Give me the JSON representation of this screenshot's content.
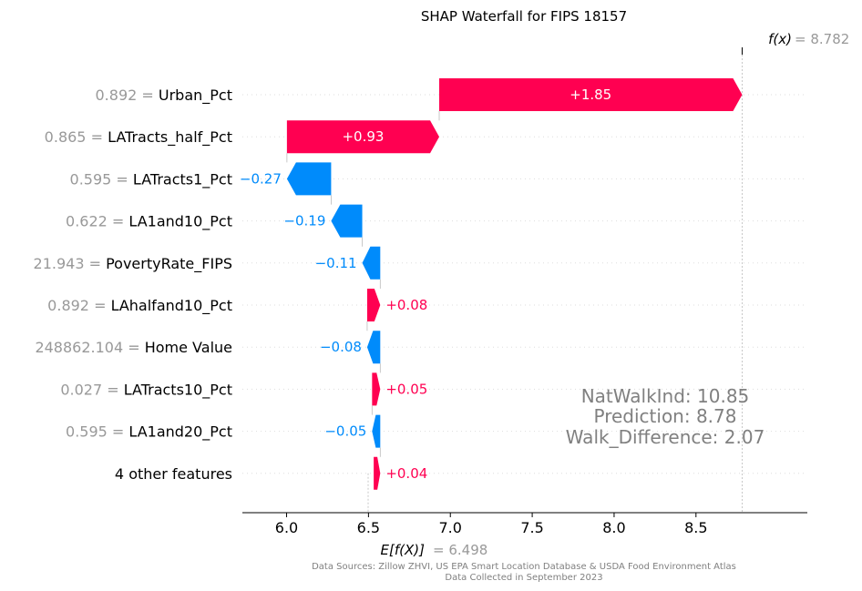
{
  "chart_data": {
    "type": "waterfall",
    "title": "SHAP Waterfall for FIPS 18157",
    "base_value": 6.498,
    "base_label": "E[f(X)]",
    "base_value_text": "= 6.498",
    "output_value": 8.782,
    "output_label": "f(x)",
    "output_value_text": "= 8.782",
    "x_ticks": [
      6.0,
      6.5,
      7.0,
      7.5,
      8.0,
      8.5
    ],
    "x_tick_labels": [
      "6.0",
      "6.5",
      "7.0",
      "7.5",
      "8.0",
      "8.5"
    ],
    "xlim": [
      5.73,
      9.18
    ],
    "colors": {
      "positive": "#ff0051",
      "negative": "#008bfb",
      "value_gray": "#999999",
      "annotation_gray": "#808080"
    },
    "features": [
      {
        "value_text": "0.892",
        "name": "Urban_Pct",
        "shap": 1.85,
        "label": "+1.85"
      },
      {
        "value_text": "0.865",
        "name": "LATracts_half_Pct",
        "shap": 0.93,
        "label": "+0.93"
      },
      {
        "value_text": "0.595",
        "name": "LATracts1_Pct",
        "shap": -0.27,
        "label": "−0.27"
      },
      {
        "value_text": "0.622",
        "name": "LA1and10_Pct",
        "shap": -0.19,
        "label": "−0.19"
      },
      {
        "value_text": "21.943",
        "name": "PovertyRate_FIPS",
        "shap": -0.11,
        "label": "−0.11"
      },
      {
        "value_text": "0.892",
        "name": "LAhalfand10_Pct",
        "shap": 0.08,
        "label": "+0.08"
      },
      {
        "value_text": "248862.104",
        "name": "Home Value",
        "shap": -0.08,
        "label": "−0.08"
      },
      {
        "value_text": "0.027",
        "name": "LATracts10_Pct",
        "shap": 0.05,
        "label": "+0.05"
      },
      {
        "value_text": "0.595",
        "name": "LA1and20_Pct",
        "shap": -0.05,
        "label": "−0.05"
      },
      {
        "value_text": "",
        "name": "4 other features",
        "shap": 0.04,
        "label": "+0.04"
      }
    ],
    "annotation": [
      "NatWalkInd:  10.85",
      "Prediction:  8.78",
      "Walk_Difference:  2.07"
    ],
    "footer": [
      "Data Sources: Zillow ZHVI, US EPA Smart Location Database & USDA Food Environment Atlas",
      "Data Collected in September 2023"
    ]
  }
}
